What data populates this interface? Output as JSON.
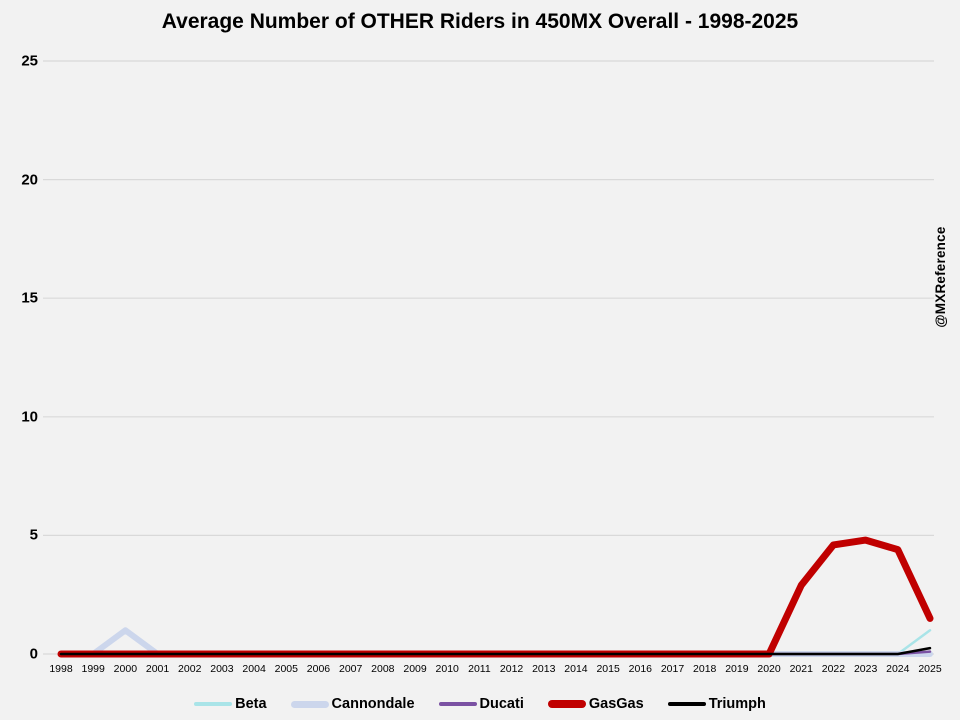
{
  "watermark": "@MXReference",
  "colors": {
    "background": "#f2f2f2",
    "gridline": "#d9d9d9",
    "text": "#000000"
  },
  "chart_data": {
    "type": "line",
    "title": "Average Number of OTHER Riders in 450MX Overall - 1998-2025",
    "xlabel": "",
    "ylabel": "",
    "ylim": [
      0,
      25
    ],
    "yticks": [
      0,
      5,
      10,
      15,
      20,
      25
    ],
    "grid": true,
    "legend_position": "bottom",
    "categories": [
      1998,
      1999,
      2000,
      2001,
      2002,
      2003,
      2004,
      2005,
      2006,
      2007,
      2008,
      2009,
      2010,
      2011,
      2012,
      2013,
      2014,
      2015,
      2016,
      2017,
      2018,
      2019,
      2020,
      2021,
      2022,
      2023,
      2024,
      2025
    ],
    "series": [
      {
        "name": "Beta",
        "color": "#a9e4e8",
        "stroke_width": 2.5,
        "values": [
          0,
          0,
          0,
          0,
          0,
          0,
          0,
          0,
          0,
          0,
          0,
          0,
          0,
          0,
          0,
          0,
          0,
          0,
          0,
          0,
          0,
          0,
          0,
          0,
          0,
          0,
          0,
          1.0
        ]
      },
      {
        "name": "Cannondale",
        "color": "#ccd6ec",
        "stroke_width": 6,
        "values": [
          0,
          0,
          1.0,
          0,
          0,
          0,
          0,
          0,
          0,
          0,
          0,
          0,
          0,
          0,
          0,
          0,
          0,
          0,
          0,
          0,
          0,
          0,
          0,
          0,
          0,
          0,
          0,
          0
        ]
      },
      {
        "name": "Ducati",
        "color": "#7b52a3",
        "stroke_width": 2.5,
        "values": [
          0,
          0,
          0,
          0,
          0,
          0,
          0,
          0,
          0,
          0,
          0,
          0,
          0,
          0,
          0,
          0,
          0,
          0,
          0,
          0,
          0,
          0,
          0,
          0,
          0,
          0,
          0,
          0.1
        ]
      },
      {
        "name": "GasGas",
        "color": "#c00000",
        "stroke_width": 7,
        "values": [
          0,
          0,
          0,
          0,
          0,
          0,
          0,
          0,
          0,
          0,
          0,
          0,
          0,
          0,
          0,
          0,
          0,
          0,
          0,
          0,
          0,
          0,
          0,
          2.9,
          4.6,
          4.8,
          4.4,
          1.5
        ]
      },
      {
        "name": "Triumph",
        "color": "#000000",
        "stroke_width": 2.5,
        "values": [
          0,
          0,
          0,
          0,
          0,
          0,
          0,
          0,
          0,
          0,
          0,
          0,
          0,
          0,
          0,
          0,
          0,
          0,
          0,
          0,
          0,
          0,
          0,
          0,
          0,
          0,
          0,
          0.25
        ]
      }
    ]
  }
}
